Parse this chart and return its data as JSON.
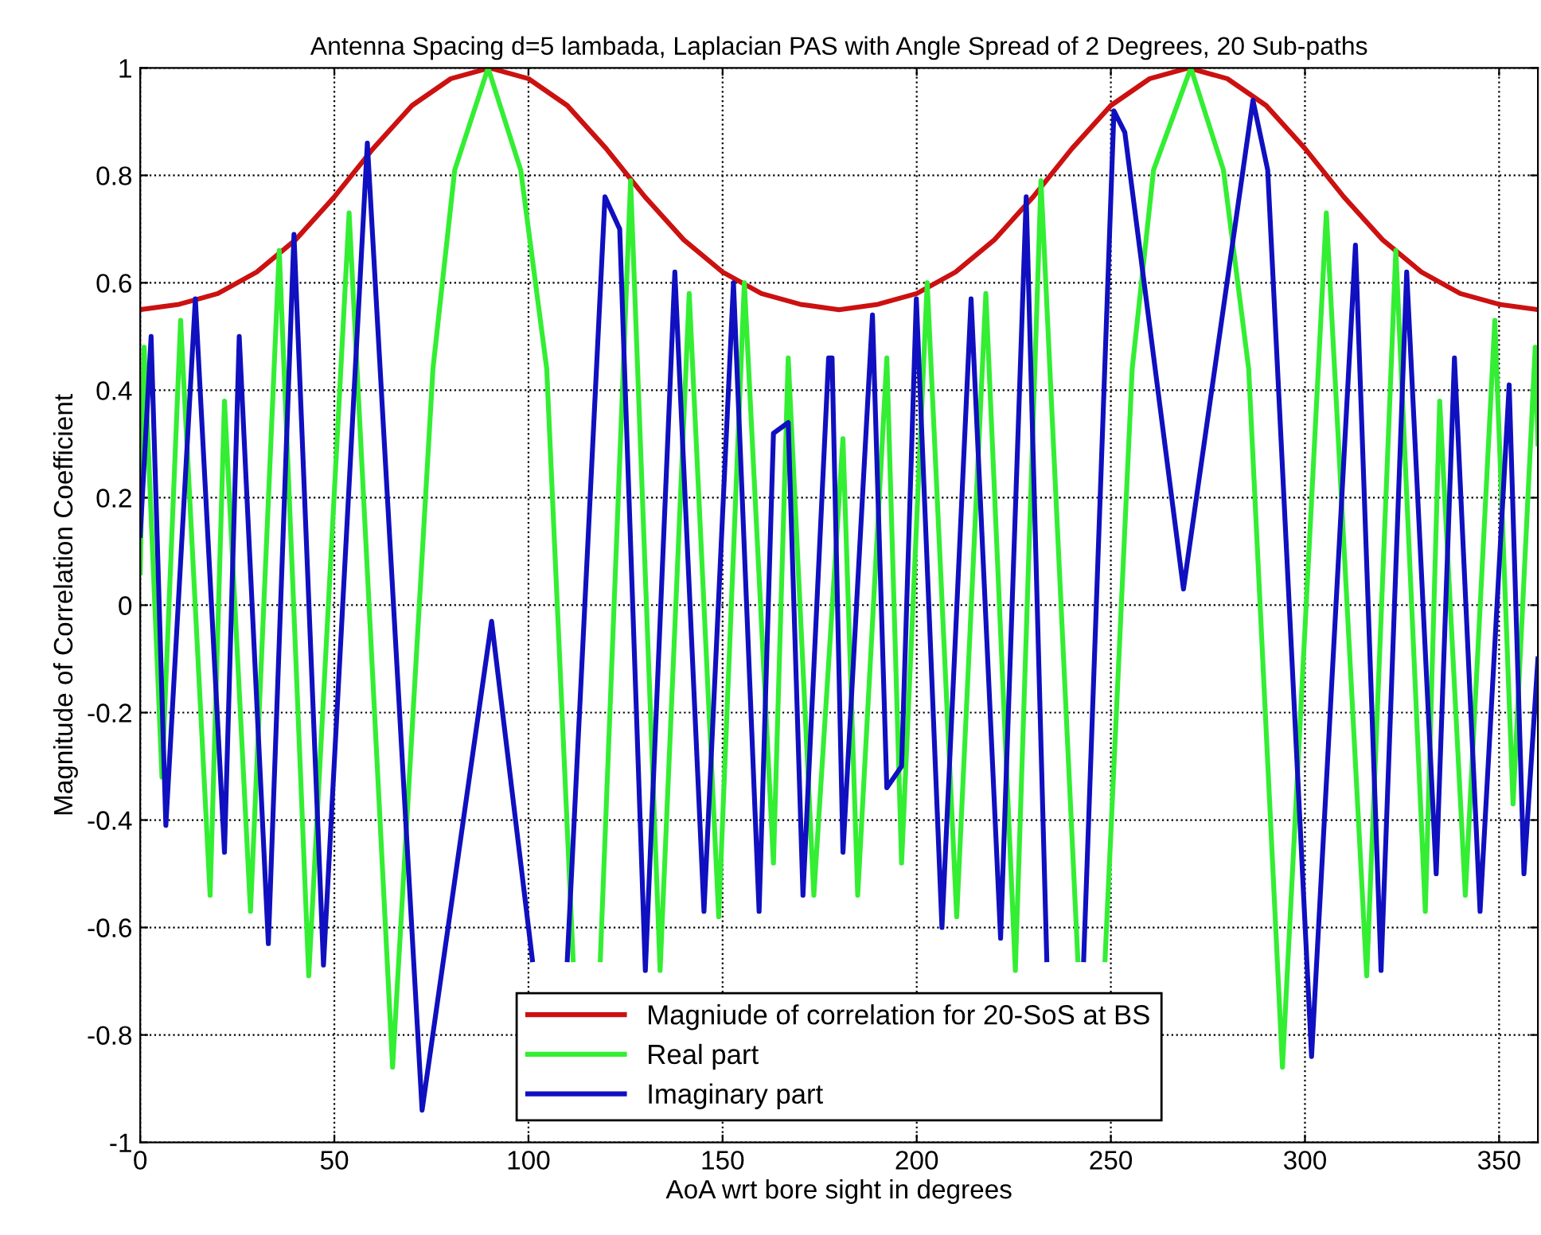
{
  "chart_data": {
    "type": "line",
    "title": "Antenna Spacing d=5 lambada, Laplacian PAS with Angle Spread of 2 Degrees, 20 Sub-paths",
    "xlabel": "AoA wrt bore sight in degrees",
    "ylabel": "Magnitude of Correlation Coefficient",
    "xlim": [
      0,
      360
    ],
    "xticks": [
      0,
      50,
      100,
      150,
      200,
      250,
      300,
      350
    ],
    "ylim": [
      -1,
      1
    ],
    "yticks": [
      -1,
      -0.8,
      -0.6,
      -0.4,
      -0.2,
      0,
      0.2,
      0.4,
      0.6,
      0.8,
      1
    ],
    "grid": true,
    "legend": "bottom",
    "line_style": "solid",
    "marker": "none",
    "series": [
      {
        "name": "Magniude of correlation for 20-SoS at BS",
        "color": "#cc1111",
        "x": [
          0,
          10,
          20,
          30,
          40,
          50,
          60,
          70,
          80,
          90,
          100,
          110,
          120,
          130,
          140,
          150,
          160,
          170,
          180,
          190,
          200,
          210,
          220,
          230,
          240,
          250,
          260,
          270,
          280,
          290,
          300,
          310,
          320,
          330,
          340,
          350,
          360
        ],
        "values": [
          0.55,
          0.56,
          0.58,
          0.62,
          0.68,
          0.76,
          0.85,
          0.93,
          0.98,
          1.0,
          0.98,
          0.93,
          0.85,
          0.76,
          0.68,
          0.62,
          0.58,
          0.56,
          0.55,
          0.56,
          0.58,
          0.62,
          0.68,
          0.76,
          0.85,
          0.93,
          0.98,
          1.0,
          0.98,
          0.93,
          0.85,
          0.76,
          0.68,
          0.62,
          0.58,
          0.56,
          0.55
        ]
      },
      {
        "name": "Real part",
        "color": "#33ee33",
        "x": [
          0,
          1,
          5.6,
          10.4,
          18,
          21.7,
          28.4,
          35.8,
          43.4,
          53.8,
          65,
          75.4,
          81,
          89.6,
          98,
          104.7,
          111.5,
          115,
          118.5,
          126.3,
          133.9,
          141.4,
          149,
          155.6,
          163.1,
          166.9,
          173.5,
          181,
          184.8,
          192.3,
          196.1,
          202.7,
          210.3,
          217.8,
          225.4,
          232,
          241.5,
          245,
          248.5,
          255.5,
          261,
          270.6,
          279,
          285.5,
          294.2,
          305.5,
          315.9,
          323.4,
          331,
          334.7,
          341.3,
          348.9,
          353.6,
          359.3,
          360
        ],
        "values": [
          0.06,
          0.48,
          -0.32,
          0.53,
          -0.54,
          0.38,
          -0.57,
          0.66,
          -0.69,
          0.73,
          -0.86,
          0.44,
          0.81,
          1.0,
          0.81,
          0.44,
          -0.66,
          null,
          -0.66,
          0.79,
          -0.68,
          0.58,
          -0.58,
          0.6,
          -0.48,
          0.46,
          -0.54,
          0.31,
          -0.54,
          0.46,
          -0.48,
          0.6,
          -0.58,
          0.58,
          -0.68,
          0.79,
          -0.66,
          null,
          -0.66,
          0.44,
          0.81,
          1.0,
          0.81,
          0.44,
          -0.86,
          0.73,
          -0.69,
          0.66,
          -0.57,
          0.38,
          -0.54,
          0.53,
          -0.37,
          0.48,
          0.3
        ]
      },
      {
        "name": "Imaginary part",
        "color": "#1010c0",
        "x": [
          0,
          2.8,
          6.6,
          14.2,
          21.7,
          25.5,
          33,
          39.6,
          47.2,
          58.5,
          72.6,
          90.5,
          101,
          106,
          110,
          119.7,
          123.5,
          130.1,
          137.7,
          145.2,
          152.8,
          159.4,
          163.1,
          166.9,
          170.7,
          177.3,
          178.2,
          181,
          188.6,
          192.3,
          196.1,
          199.9,
          206.5,
          214,
          221.6,
          228.2,
          233.5,
          238,
          243,
          250.8,
          253.6,
          268.7,
          286.6,
          290.4,
          301.7,
          313,
          319.6,
          326.2,
          333.8,
          338.5,
          345.1,
          352.6,
          356.4,
          360
        ],
        "values": [
          0.13,
          0.5,
          -0.41,
          0.57,
          -0.46,
          0.5,
          -0.63,
          0.69,
          -0.67,
          0.86,
          -0.94,
          -0.03,
          -0.66,
          null,
          -0.66,
          0.76,
          0.7,
          -0.68,
          0.62,
          -0.57,
          0.6,
          -0.57,
          0.32,
          0.34,
          -0.54,
          0.46,
          0.46,
          -0.46,
          0.54,
          -0.34,
          -0.3,
          0.57,
          -0.6,
          0.57,
          -0.62,
          0.76,
          -0.66,
          null,
          -0.66,
          0.92,
          0.88,
          0.03,
          0.94,
          0.81,
          -0.84,
          0.67,
          -0.68,
          0.62,
          -0.5,
          0.46,
          -0.57,
          0.41,
          -0.5,
          -0.1
        ]
      }
    ]
  }
}
